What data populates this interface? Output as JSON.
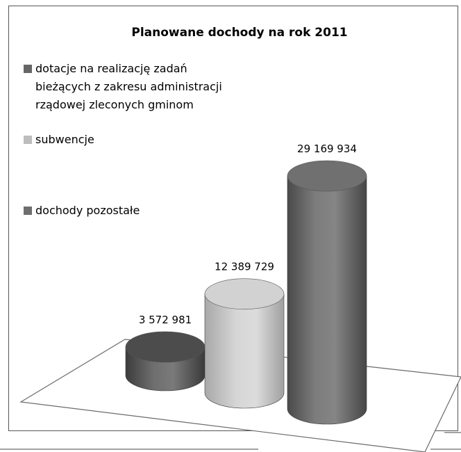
{
  "chart_data": {
    "type": "bar",
    "title": "Planowane dochody na rok 2011",
    "categories": [
      "dotacje na realizację zadań bieżących z zakresu administracji rządowej zleconych gminom",
      "subwencje",
      "dochody pozostałe"
    ],
    "values": [
      3572981,
      12389729,
      29169934
    ],
    "value_labels": [
      "3 572 981",
      "12 389 729",
      "29 169 934"
    ],
    "legend": {
      "placement": "left",
      "entries": [
        {
          "lines": [
            "dotacje na realizację zadań",
            "bieżących z zakresu administracji",
            "rządowej zleconych gminom"
          ],
          "color": "#666666"
        },
        {
          "lines": [
            "subwencje"
          ],
          "color": "#bdbdbd"
        },
        {
          "lines": [
            "dochody pozostałe"
          ],
          "color": "#6e6e6e"
        }
      ]
    },
    "colors": [
      "#5a5a5a",
      "#c8c8c8",
      "#6e6e6e"
    ],
    "shape": "3d-cylinder",
    "grid": false,
    "axes_visible": false
  }
}
